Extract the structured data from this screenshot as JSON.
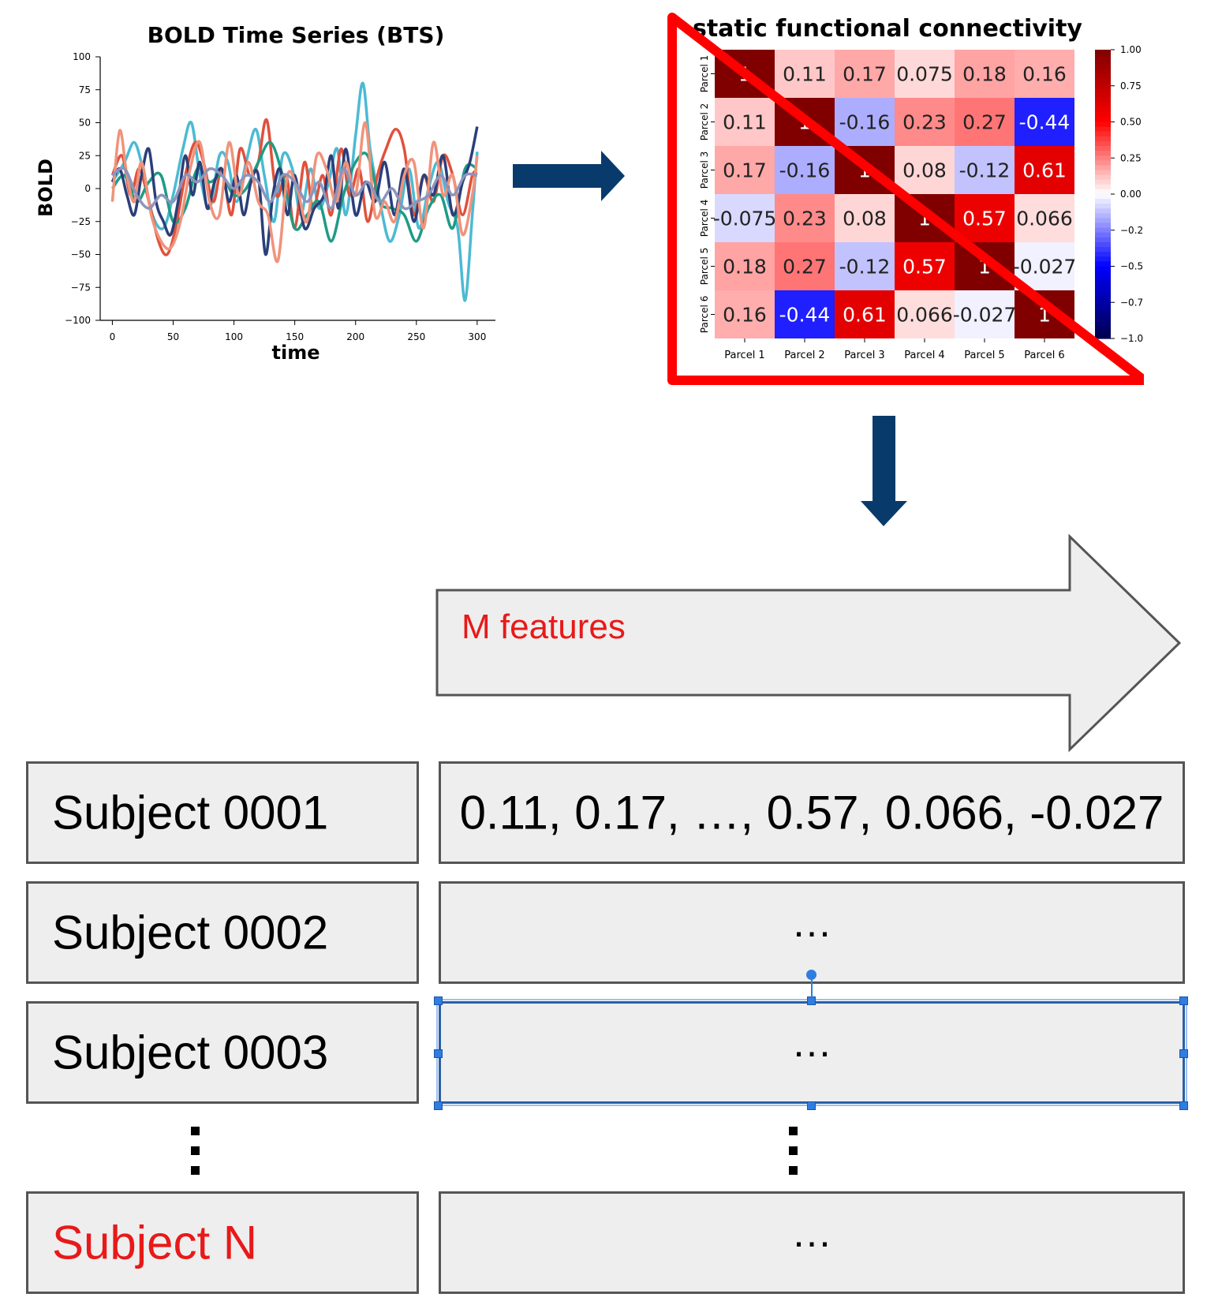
{
  "bold_chart": {
    "title": "BOLD Time Series (BTS)",
    "xlabel": "time",
    "ylabel": "BOLD"
  },
  "fc_matrix": {
    "title": "static functional connectivity",
    "parcels": [
      "Parcel 1",
      "Parcel 2",
      "Parcel 3",
      "Parcel 4",
      "Parcel 5",
      "Parcel 6"
    ],
    "cell_labels": [
      [
        "1",
        "0.11",
        "0.17",
        "0.075",
        "0.18",
        "0.16"
      ],
      [
        "0.11",
        "1",
        "-0.16",
        "0.23",
        "0.27",
        "-0.44"
      ],
      [
        "0.17",
        "-0.16",
        "1",
        "0.08",
        "-0.12",
        "0.61"
      ],
      [
        "-0.075",
        "0.23",
        "0.08",
        "1",
        "0.57",
        "0.066"
      ],
      [
        "0.18",
        "0.27",
        "-0.12",
        "0.57",
        "1",
        "-0.027"
      ],
      [
        "0.16",
        "-0.44",
        "0.61",
        "0.066",
        "-0.027",
        "1"
      ]
    ],
    "colorbar_ticks": [
      "1.00",
      "0.75",
      "0.50",
      "0.25",
      "0.00",
      "−0.25",
      "−0.50",
      "−0.75",
      "−1.00"
    ],
    "annotation_color": "#ff0000"
  },
  "features_arrow": {
    "label": "M features"
  },
  "subjects": [
    {
      "name": "Subject 0001",
      "features": "0.11, 0.17, …, 0.57, 0.066, -0.027"
    },
    {
      "name": "Subject 0002",
      "features": "…"
    },
    {
      "name": "Subject 0003",
      "features": "…"
    },
    {
      "name": "Subject N",
      "features": "…"
    }
  ],
  "colors": {
    "arrow_blue": "#083b6b",
    "box_fill": "#eeeeee",
    "highlight_red": "#e81919",
    "selection_blue": "#2f7de1"
  },
  "chart_data": [
    {
      "type": "line",
      "title": "BOLD Time Series (BTS)",
      "xlabel": "time",
      "ylabel": "BOLD",
      "xlim": [
        -10,
        315
      ],
      "ylim": [
        -100,
        100
      ],
      "xticks": [
        0,
        50,
        100,
        150,
        200,
        250,
        300
      ],
      "yticks": [
        -100,
        -75,
        -50,
        -25,
        0,
        25,
        50,
        75,
        100
      ],
      "grid": false,
      "series": [
        {
          "color": "#4cbad3",
          "x": [
            0,
            10,
            18,
            25,
            33,
            42,
            50,
            58,
            65,
            72,
            80,
            88,
            95,
            102,
            110,
            118,
            125,
            133,
            140,
            148,
            155,
            163,
            170,
            178,
            185,
            192,
            200,
            206,
            212,
            220,
            228,
            236,
            244,
            252,
            260,
            268,
            276,
            284,
            290,
            296,
            300
          ],
          "y": [
            5,
            20,
            35,
            15,
            -20,
            -30,
            -5,
            30,
            50,
            10,
            -15,
            25,
            20,
            -10,
            20,
            45,
            10,
            -25,
            25,
            15,
            -20,
            15,
            -15,
            5,
            30,
            -20,
            40,
            80,
            30,
            -10,
            -40,
            -20,
            15,
            -30,
            0,
            20,
            -10,
            -30,
            -85,
            -20,
            28
          ]
        },
        {
          "color": "#e0513c",
          "x": [
            0,
            8,
            15,
            22,
            30,
            38,
            45,
            52,
            60,
            68,
            75,
            83,
            90,
            98,
            105,
            113,
            120,
            127,
            135,
            143,
            150,
            158,
            165,
            173,
            180,
            188,
            195,
            203,
            210,
            218,
            225,
            233,
            240,
            248,
            256,
            264,
            272,
            280,
            288,
            296,
            300
          ],
          "y": [
            10,
            25,
            -5,
            15,
            -10,
            -40,
            -50,
            -30,
            10,
            35,
            20,
            -10,
            15,
            -20,
            30,
            10,
            20,
            52,
            -5,
            10,
            -30,
            20,
            -15,
            10,
            -20,
            30,
            -5,
            15,
            -25,
            10,
            30,
            45,
            30,
            -20,
            10,
            -10,
            25,
            10,
            -20,
            10,
            12
          ]
        },
        {
          "color": "#1f9b85",
          "x": [
            0,
            10,
            20,
            30,
            40,
            50,
            60,
            70,
            80,
            90,
            100,
            110,
            120,
            130,
            140,
            150,
            160,
            170,
            180,
            190,
            200,
            210,
            220,
            230,
            240,
            250,
            260,
            270,
            280,
            290,
            300
          ],
          "y": [
            0,
            10,
            -10,
            5,
            10,
            -25,
            -15,
            15,
            5,
            10,
            -5,
            0,
            20,
            35,
            10,
            -30,
            -20,
            -10,
            -40,
            -5,
            20,
            25,
            -10,
            -15,
            -20,
            -40,
            -15,
            -5,
            -30,
            15,
            15
          ]
        },
        {
          "color": "#2a3f7a",
          "x": [
            0,
            6,
            12,
            18,
            24,
            30,
            36,
            42,
            48,
            54,
            60,
            66,
            72,
            78,
            84,
            90,
            96,
            102,
            108,
            114,
            120,
            126,
            132,
            138,
            144,
            150,
            158,
            166,
            174,
            180,
            186,
            192,
            200,
            208,
            216,
            224,
            232,
            240,
            248,
            256,
            264,
            272,
            280,
            288,
            294,
            300
          ],
          "y": [
            5,
            15,
            -5,
            -20,
            10,
            30,
            -10,
            -25,
            -35,
            -10,
            25,
            -5,
            20,
            -15,
            5,
            15,
            -10,
            10,
            -20,
            5,
            10,
            -50,
            -5,
            15,
            -20,
            10,
            -30,
            -15,
            -5,
            25,
            -15,
            30,
            -20,
            5,
            -10,
            20,
            -20,
            15,
            -25,
            10,
            -5,
            25,
            -20,
            5,
            20,
            47
          ]
        },
        {
          "color": "#f0937b",
          "x": [
            0,
            6,
            12,
            18,
            24,
            32,
            40,
            48,
            56,
            64,
            72,
            80,
            88,
            96,
            104,
            112,
            120,
            128,
            136,
            144,
            152,
            160,
            168,
            176,
            184,
            192,
            200,
            208,
            216,
            224,
            232,
            240,
            248,
            256,
            264,
            272,
            280,
            288,
            296,
            300
          ],
          "y": [
            -10,
            44,
            10,
            -10,
            20,
            -20,
            -40,
            -45,
            -25,
            15,
            35,
            -10,
            -20,
            35,
            -5,
            20,
            -10,
            -20,
            -55,
            10,
            0,
            -25,
            25,
            15,
            -10,
            20,
            -5,
            50,
            -20,
            -10,
            -25,
            10,
            20,
            -30,
            35,
            -5,
            10,
            -35,
            -5,
            25
          ]
        },
        {
          "color": "#8d94bd",
          "x": [
            0,
            10,
            20,
            30,
            40,
            50,
            60,
            70,
            80,
            90,
            100,
            110,
            120,
            130,
            140,
            150,
            160,
            170,
            180,
            190,
            200,
            210,
            220,
            230,
            240,
            250,
            260,
            270,
            280,
            290,
            300
          ],
          "y": [
            10,
            15,
            -5,
            -15,
            -5,
            -10,
            10,
            5,
            15,
            10,
            0,
            10,
            5,
            -10,
            10,
            5,
            -10,
            5,
            -15,
            15,
            -5,
            5,
            -10,
            0,
            -15,
            -10,
            -5,
            10,
            -5,
            10,
            10
          ]
        }
      ]
    },
    {
      "type": "heatmap",
      "title": "static functional connectivity",
      "categories": [
        "Parcel 1",
        "Parcel 2",
        "Parcel 3",
        "Parcel 4",
        "Parcel 5",
        "Parcel 6"
      ],
      "values": [
        [
          1,
          0.11,
          0.17,
          0.075,
          0.18,
          0.16
        ],
        [
          0.11,
          1,
          -0.16,
          0.23,
          0.27,
          -0.44
        ],
        [
          0.17,
          -0.16,
          1,
          0.08,
          -0.12,
          0.61
        ],
        [
          -0.075,
          0.23,
          0.08,
          1,
          0.57,
          0.066
        ],
        [
          0.18,
          0.27,
          -0.12,
          0.57,
          1,
          -0.027
        ],
        [
          0.16,
          -0.44,
          0.61,
          0.066,
          -0.027,
          1
        ]
      ],
      "vmin": -1,
      "vmax": 1,
      "colormap": "seismic"
    }
  ]
}
